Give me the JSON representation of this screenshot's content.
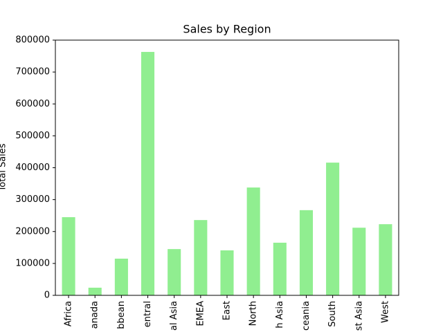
{
  "chart_data": {
    "type": "bar",
    "title": "Sales by Region",
    "ylabel": "Total Sales",
    "categories": [
      "Africa",
      "anada",
      "bbean",
      "entral",
      "al Asia",
      "EMEA",
      "East",
      "North",
      "h Asia",
      "ceania",
      "South",
      "st Asia",
      "West"
    ],
    "values": [
      245000,
      24000,
      115000,
      763000,
      145000,
      236000,
      141000,
      338000,
      165000,
      267000,
      416000,
      212000,
      223000
    ],
    "color": "#90ee90",
    "ylim": [
      0,
      800000
    ],
    "yticks": [
      0,
      100000,
      200000,
      300000,
      400000,
      500000,
      600000,
      700000,
      800000
    ],
    "grid": false
  }
}
